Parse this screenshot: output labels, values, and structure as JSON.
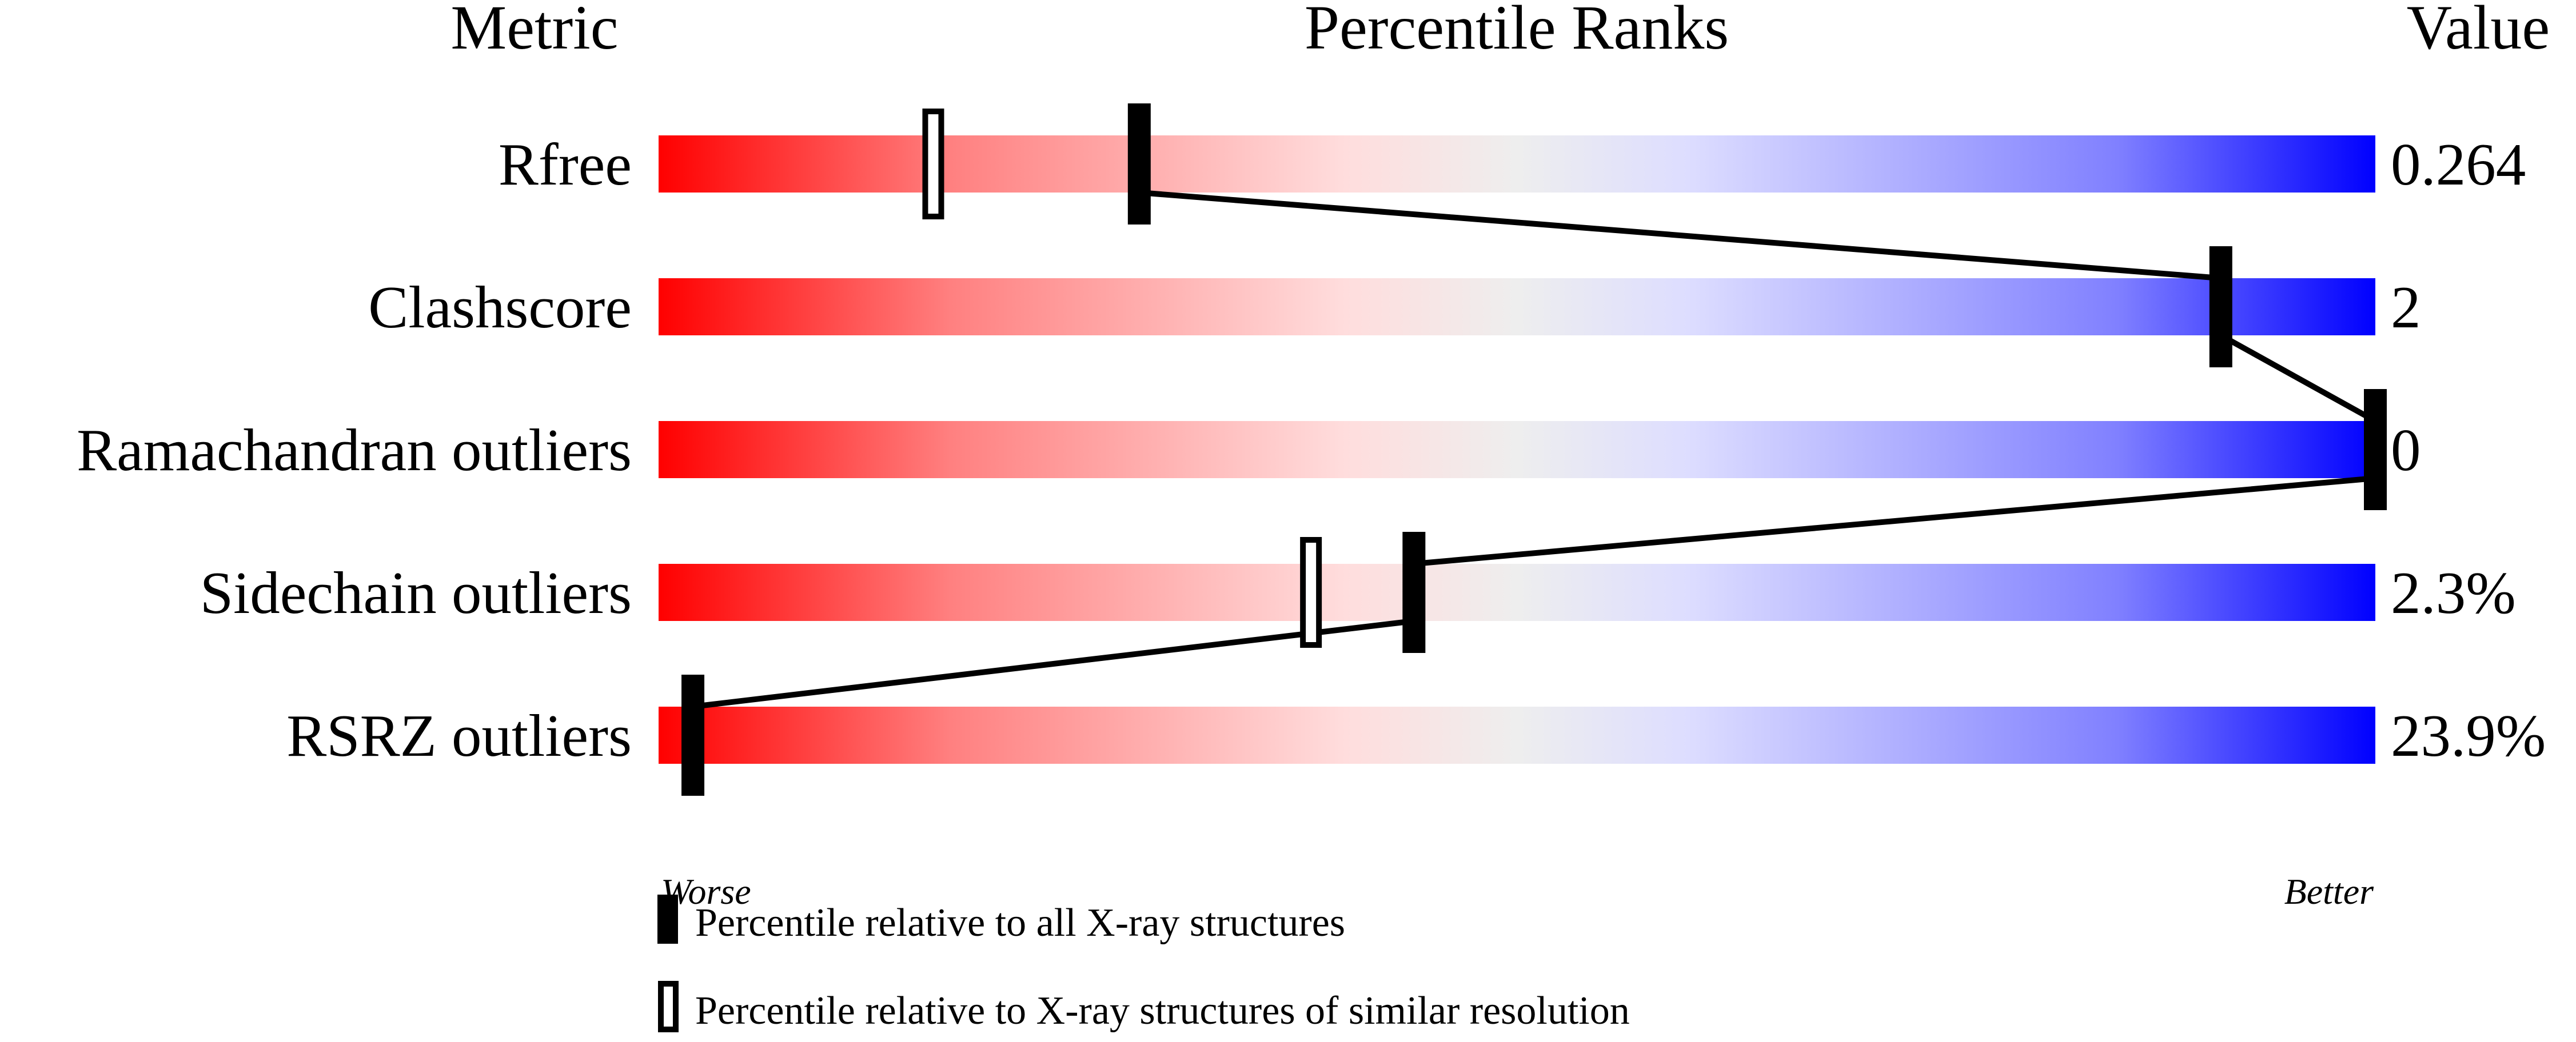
{
  "chart_data": {
    "type": "percentile-slider",
    "headers": {
      "metric": "Metric",
      "ranks": "Percentile Ranks",
      "value": "Value"
    },
    "xlim": [
      0,
      100
    ],
    "axis_labels": {
      "worse": "Worse",
      "better": "Better"
    },
    "metrics": [
      {
        "name": "Rfree",
        "value": "0.264",
        "percentile_all": 28,
        "percentile_similar": 16
      },
      {
        "name": "Clashscore",
        "value": "2",
        "percentile_all": 91,
        "percentile_similar": 91
      },
      {
        "name": "Ramachandran outliers",
        "value": "0",
        "percentile_all": 100,
        "percentile_similar": null
      },
      {
        "name": "Sidechain outliers",
        "value": "2.3%",
        "percentile_all": 44,
        "percentile_similar": 38
      },
      {
        "name": "RSRZ outliers",
        "value": "23.9%",
        "percentile_all": 2,
        "percentile_similar": null
      }
    ],
    "legend": [
      {
        "marker": "filled",
        "label": "Percentile relative to all X-ray structures"
      },
      {
        "marker": "open",
        "label": "Percentile relative to X-ray structures of similar resolution"
      }
    ],
    "gradient_colors": [
      "#ff0000",
      "#ff8080",
      "#ffdddd",
      "#eeeeee",
      "#ddddff",
      "#8080ff",
      "#0000ff"
    ]
  }
}
